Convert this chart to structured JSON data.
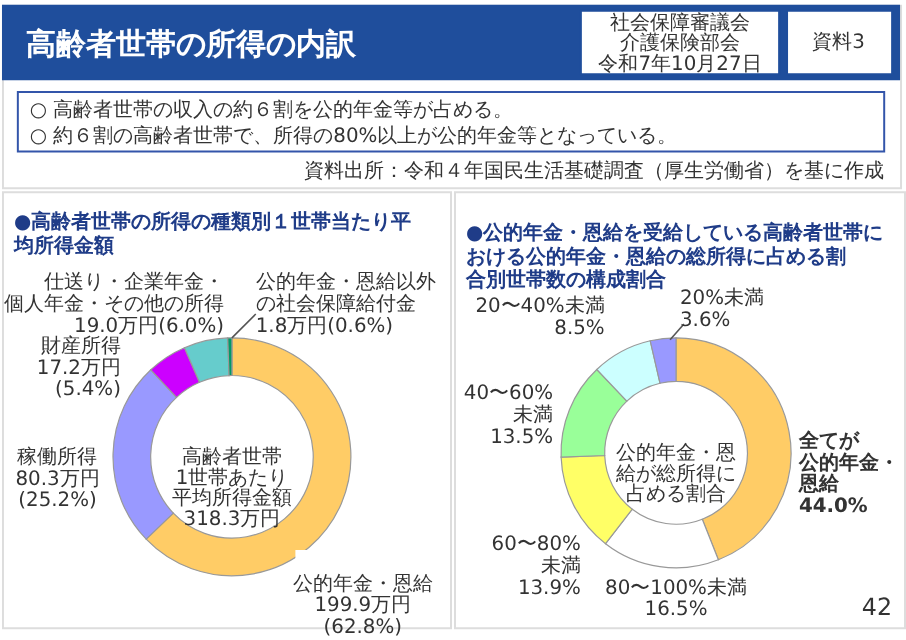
{
  "chart_data": [
    {
      "type": "donut",
      "title": "●高齢者世帯の所得の種類別１世帯当たり平均所得金額",
      "categories": [
        "公的年金・恩給",
        "稼働所得",
        "財産所得",
        "仕送り・企業年金・個人年金・その他の所得",
        "公的年金・恩給以外の社会保障給付金"
      ],
      "values": [
        199.9,
        80.3,
        17.2,
        19.0,
        1.8
      ],
      "colors": [
        "#ffcc66",
        "#9999ff",
        "#cc00ff",
        "#66cccc",
        "#009966"
      ],
      "value_labels": [
        "199.9万円(62.8%)",
        "80.3万円(25.2%)",
        "17.2万円(5.4%)",
        "19.0万円(6.0%)",
        "1.8万円(0.6%)"
      ],
      "annotations": [
        "高齢者世帯の所得の内訳",
        "社会保障審議会",
        "介護保険部会",
        "令和7年10月27日",
        "資料3",
        "○ 高齢者世帯の収入の約６割を公的年金等が占める。",
        "○ 約６割の高齢者世帯で、所得の80%以上が公的年金等となっている。",
        "資料出所：令和４年国民生活基礎調査（厚生労働省）を基に作成",
        "高齢者世帯1世帯あたり平均所得金額318.3万円"
      ]
    },
    {
      "type": "donut",
      "title": "●公的年金・恩給を受給している高齢者世帯における公的年金・恩給の総所得に占める割合別世帯数の構成割合",
      "categories": [
        "全てが公的年金・恩給",
        "80〜100%未満",
        "60〜80%未満",
        "40〜60%未満",
        "20〜40%未満",
        "20%未満"
      ],
      "values": [
        44.0,
        16.5,
        13.9,
        13.5,
        8.5,
        3.6
      ],
      "colors": [
        "#ffcc66",
        "#ffffff",
        "#ffff66",
        "#99ff99",
        "#ccffff",
        "#9999ff"
      ],
      "value_labels": [
        "44.0%",
        "16.5%",
        "13.9%",
        "13.5%",
        "8.5%",
        "3.6%"
      ],
      "annotations": [
        "公的年金・恩給が総所得に占める割合",
        "42"
      ]
    }
  ]
}
